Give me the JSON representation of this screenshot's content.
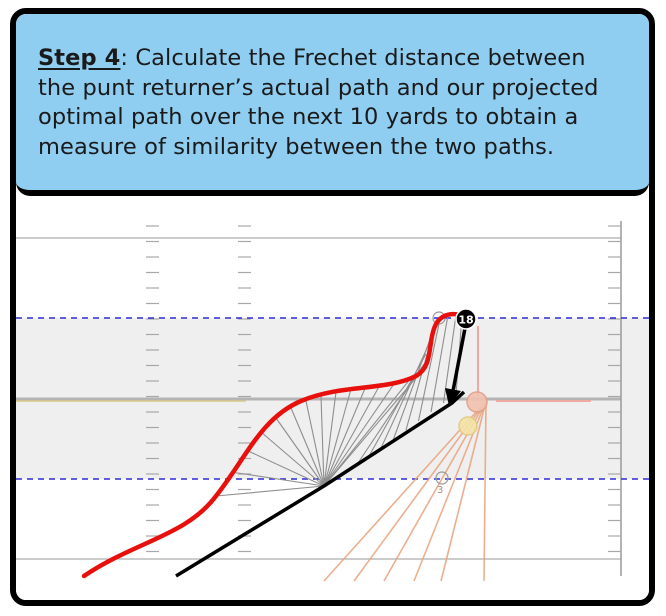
{
  "caption": {
    "step_label": "Step 4",
    "text": ": Calculate the Frechet distance between the punt returner’s actual path and our projected optimal path over the next 10 yards to obtain a measure of similarity between the two paths."
  },
  "figure": {
    "player_label": "18",
    "colors": {
      "caption_background": "#8fcdf1",
      "actual_path": "#e8100c",
      "optimal_path": "#000000",
      "frechet_links": "#8e8e8e",
      "yard_window": "#2b2bd6",
      "defender_lanes": "#e8a27c",
      "shaded_zone": "#efefef"
    }
  }
}
